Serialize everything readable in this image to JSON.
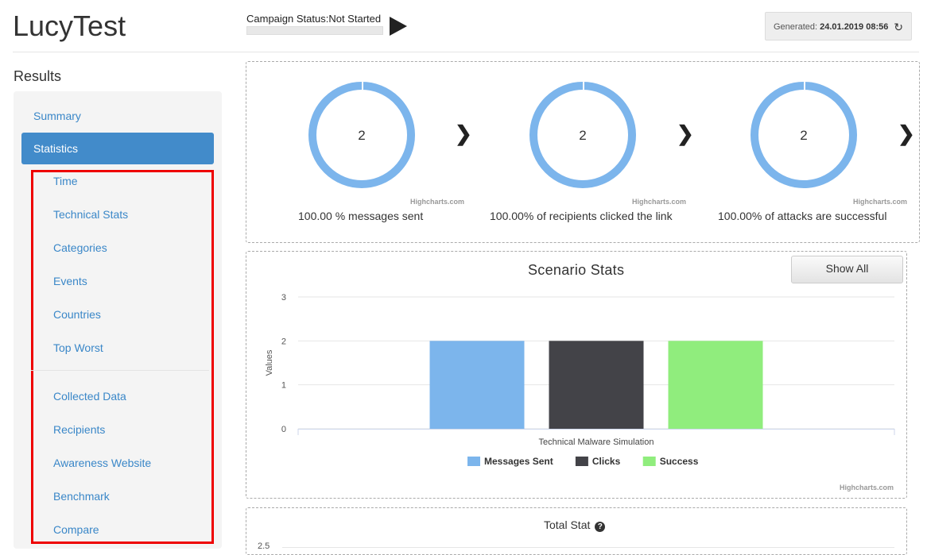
{
  "header": {
    "app_title": "LucyTest",
    "campaign_status_label": "Campaign Status:",
    "campaign_status_value": "Not Started",
    "generated_label": "Generated:",
    "generated_value": "24.01.2019 08:56"
  },
  "sidebar": {
    "heading": "Results",
    "items": [
      {
        "label": "Summary"
      },
      {
        "label": "Statistics",
        "active": true
      },
      {
        "label": "Time"
      },
      {
        "label": "Technical Stats"
      },
      {
        "label": "Categories"
      },
      {
        "label": "Events"
      },
      {
        "label": "Countries"
      },
      {
        "label": "Top Worst"
      },
      {
        "label": "Collected Data"
      },
      {
        "label": "Recipients"
      },
      {
        "label": "Awareness Website"
      },
      {
        "label": "Benchmark"
      },
      {
        "label": "Compare"
      }
    ]
  },
  "funnel": {
    "items": [
      {
        "value": "2",
        "caption": "100.00 % messages sent",
        "credit": "Highcharts.com"
      },
      {
        "value": "2",
        "caption": "100.00% of recipients clicked the link",
        "credit": "Highcharts.com"
      },
      {
        "value": "2",
        "caption": "100.00% of attacks are successful",
        "credit": "Highcharts.com"
      }
    ]
  },
  "scenario": {
    "show_all_label": "Show All",
    "credit": "Highcharts.com"
  },
  "total_stat": {
    "title": "Total Stat",
    "first_tick": "2.5"
  },
  "colors": {
    "accent": "#428bca",
    "messages_sent": "#7cb5ec",
    "clicks": "#434348",
    "success": "#90ed7d"
  },
  "chart_data": {
    "type": "bar",
    "title": "Scenario Stats",
    "xlabel": "",
    "ylabel": "Values",
    "categories": [
      "Technical Malware Simulation"
    ],
    "series": [
      {
        "name": "Messages Sent",
        "values": [
          2
        ],
        "color": "#7cb5ec"
      },
      {
        "name": "Clicks",
        "values": [
          2
        ],
        "color": "#434348"
      },
      {
        "name": "Success",
        "values": [
          2
        ],
        "color": "#90ed7d"
      }
    ],
    "ylim": [
      0,
      3
    ],
    "yticks": [
      0,
      1,
      2,
      3
    ],
    "grid": true,
    "legend_position": "bottom"
  }
}
